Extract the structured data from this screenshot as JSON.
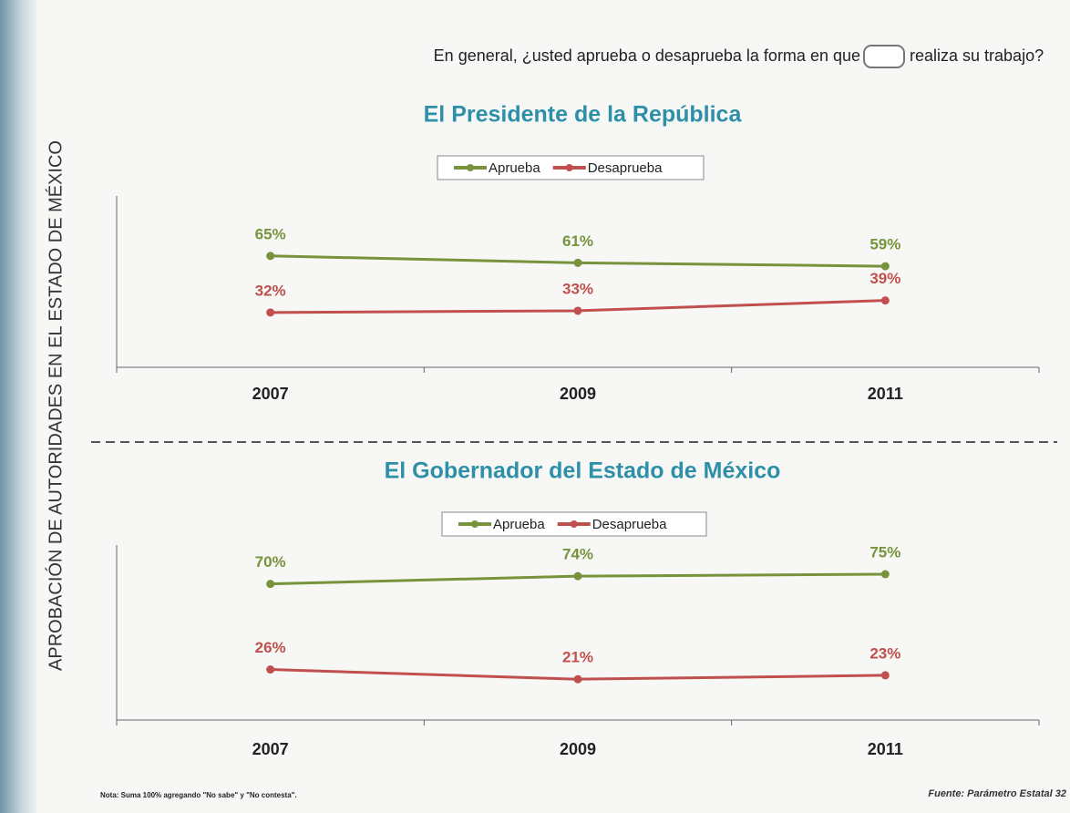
{
  "side_title": "APROBACIÓN DE AUTORIDADES EN EL ESTADO DE MÉXICO",
  "question": {
    "before": "En general, ¿usted aprueba o desaprueba la forma en que",
    "after": "realiza su trabajo?"
  },
  "note": "Nota: Suma 100% agregando \"No sabe\" y \"No contesta\".",
  "source": "Fuente: Parámetro Estatal 32",
  "chart_data": [
    {
      "type": "line",
      "title": "El Presidente de la República",
      "categories": [
        "2007",
        "2009",
        "2011"
      ],
      "series": [
        {
          "name": "Aprueba",
          "color": "#77933c",
          "values": [
            65,
            61,
            59
          ],
          "value_labels": [
            "65%",
            "61%",
            "59%"
          ]
        },
        {
          "name": "Desaprueba",
          "color": "#c0504d",
          "values": [
            32,
            33,
            39
          ],
          "value_labels": [
            "32%",
            "33%",
            "39%"
          ]
        }
      ],
      "ylim": [
        0,
        100
      ]
    },
    {
      "type": "line",
      "title": "El Gobernador del Estado de México",
      "categories": [
        "2007",
        "2009",
        "2011"
      ],
      "series": [
        {
          "name": "Aprueba",
          "color": "#77933c",
          "values": [
            70,
            74,
            75
          ],
          "value_labels": [
            "70%",
            "74%",
            "75%"
          ]
        },
        {
          "name": "Desaprueba",
          "color": "#c0504d",
          "values": [
            26,
            21,
            23
          ],
          "value_labels": [
            "26%",
            "21%",
            "23%"
          ]
        }
      ],
      "ylim": [
        0,
        90
      ]
    }
  ]
}
